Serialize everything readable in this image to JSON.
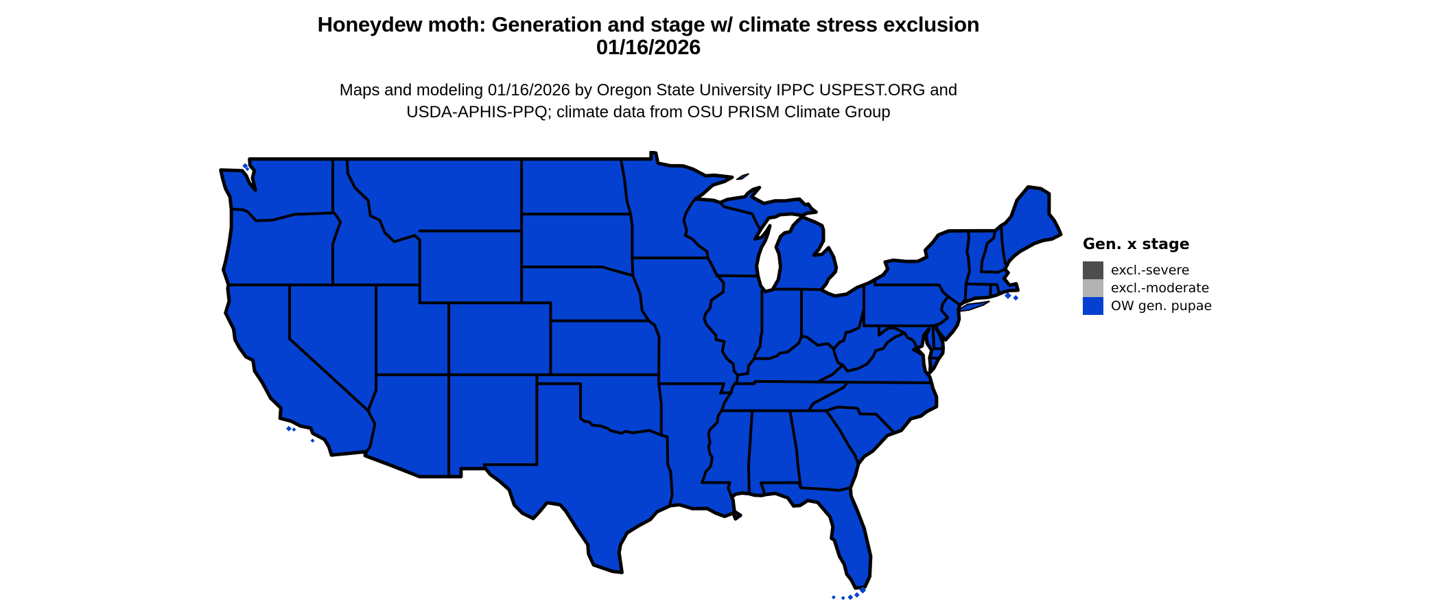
{
  "header": {
    "title_line1": "Honeydew moth: Generation and stage w/ climate stress exclusion",
    "title_line2": "01/16/2026",
    "subtitle_line1": "Maps and modeling 01/16/2026 by Oregon State University IPPC USPEST.ORG and",
    "subtitle_line2": "USDA-APHIS-PPQ; climate data from OSU PRISM Climate Group"
  },
  "legend": {
    "title": "Gen. x stage",
    "items": [
      {
        "label": "excl.-severe",
        "color": "#4d4d4d"
      },
      {
        "label": "excl.-moderate",
        "color": "#b3b3b3"
      },
      {
        "label": "OW gen. pupae",
        "color": "#0441d1"
      }
    ]
  },
  "map": {
    "region_label": "Continental United States",
    "fill_color": "#0441d1",
    "border_color": "#000000",
    "fill_meaning": "OW gen. pupae"
  }
}
